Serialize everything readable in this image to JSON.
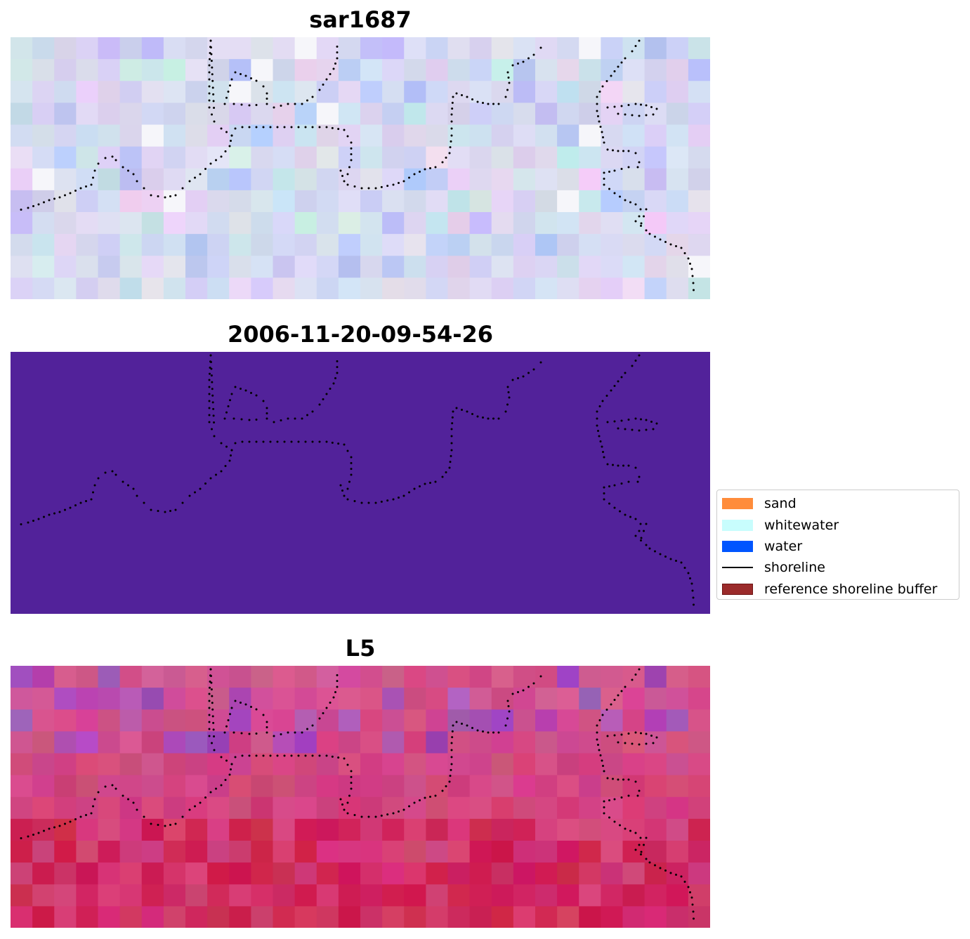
{
  "panels": [
    {
      "title": "sar1687",
      "image": "pale-lavender-speckle"
    },
    {
      "title": "2006-11-20-09-54-26",
      "image": "solid-purple",
      "fill_color": "#52229a"
    },
    {
      "title": "L5",
      "image": "pink-magenta-speckle"
    }
  ],
  "legend": {
    "items": [
      {
        "label": "sand",
        "color": "#ff8c3b",
        "kind": "patch"
      },
      {
        "label": "whitewater",
        "color": "#c8fdfd",
        "kind": "patch"
      },
      {
        "label": "water",
        "color": "#0055ff",
        "kind": "patch"
      },
      {
        "label": "shoreline",
        "color": "#000000",
        "kind": "line"
      },
      {
        "label": "reference shoreline buffer",
        "color": "#9b2b2b",
        "kind": "patch"
      }
    ]
  }
}
